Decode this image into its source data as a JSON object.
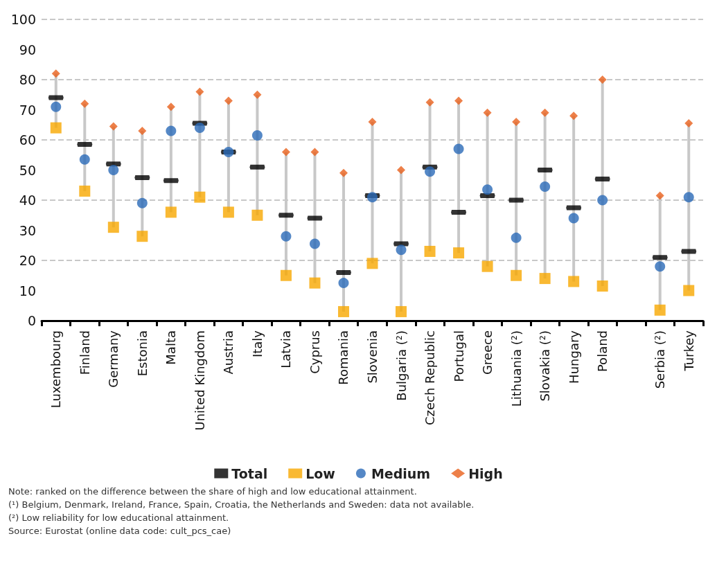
{
  "chart_data": {
    "type": "scatter",
    "categories": [
      "Luxembourg",
      "Finland",
      "Germany",
      "Estonia",
      "Malta",
      "United Kingdom",
      "Austria",
      "Italy",
      "Latvia",
      "Cyprus",
      "Romania",
      "Slovenia",
      "Bulgaria (²)",
      "Czech Republic",
      "Portugal",
      "Greece",
      "Lithuania (²)",
      "Slovakia (²)",
      "Hungary",
      "Poland",
      null,
      "Serbia (²)",
      "Turkey"
    ],
    "series": [
      {
        "name": "Total",
        "color": "#000000",
        "values": [
          74,
          58.5,
          52,
          47.5,
          46.5,
          65.5,
          56,
          51,
          35,
          34,
          16,
          41.5,
          25.5,
          51,
          36,
          41.5,
          40,
          50,
          37.5,
          47,
          null,
          21,
          23
        ]
      },
      {
        "name": "Low",
        "color": "#f7a800",
        "marker": "square",
        "values": [
          64,
          43,
          31,
          28,
          36,
          41,
          36,
          35,
          15,
          12.5,
          3,
          19,
          3,
          23,
          22.5,
          18,
          15,
          14,
          13,
          11.5,
          null,
          3.5,
          10
        ]
      },
      {
        "name": "Medium",
        "color": "#2a6ab8",
        "marker": "circle",
        "values": [
          71,
          53.5,
          50,
          39,
          63,
          64,
          56,
          61.5,
          28,
          25.5,
          12.5,
          41,
          23.5,
          49.5,
          57,
          43.5,
          27.5,
          44.5,
          34,
          40,
          null,
          18,
          41
        ]
      },
      {
        "name": "High",
        "color": "#e8601c",
        "marker": "diamond",
        "values": [
          82,
          72,
          64.5,
          63,
          71,
          76,
          73,
          75,
          56,
          56,
          49,
          66,
          50,
          72.5,
          73,
          69,
          66,
          69,
          68,
          80,
          null,
          41.5,
          65.5
        ]
      }
    ],
    "ylim": [
      0,
      100
    ],
    "yticks": [
      0,
      10,
      20,
      30,
      40,
      50,
      60,
      70,
      80,
      90,
      100
    ],
    "grid": "y",
    "legend": "bottom",
    "annotations": [
      "Note: ranked on the difference between the share of high and low educational attainment.",
      "(¹) Belgium, Denmark, Ireland, France, Spain, Croatia, the Netherlands and Sweden: data not available.",
      "(²) Low reliability for low educational attainment.",
      "Source: Eurostat (online data code: cult_pcs_cae)"
    ]
  }
}
